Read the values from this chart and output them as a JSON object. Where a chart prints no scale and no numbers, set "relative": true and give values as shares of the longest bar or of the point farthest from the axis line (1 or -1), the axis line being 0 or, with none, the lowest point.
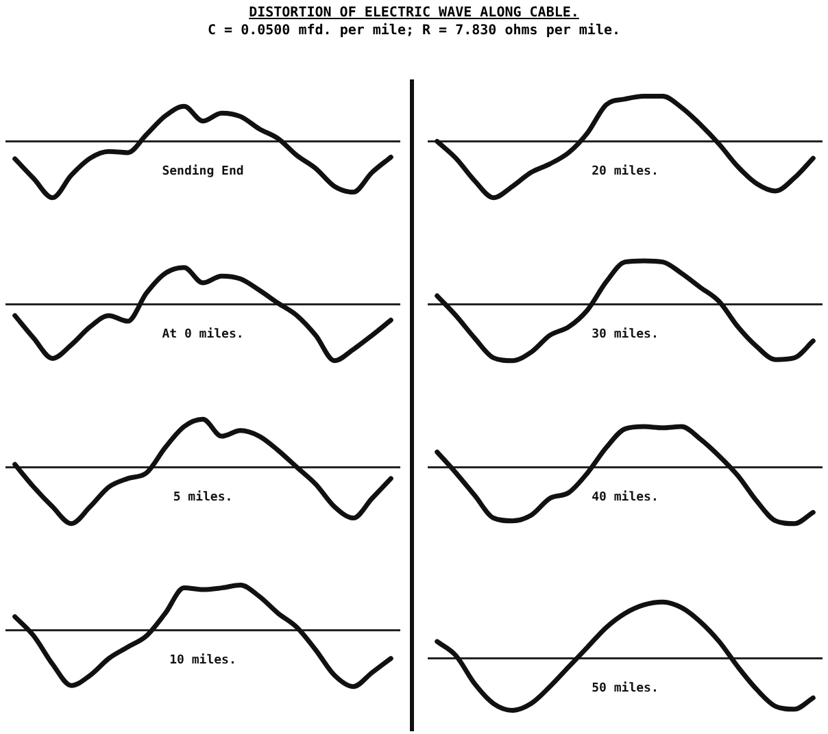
{
  "chart_data": [
    {
      "type": "line",
      "title": "DISTORTION OF ELECTRIC WAVE ALONG CABLE.",
      "subtitle": "C = 0.0500 mfd. per mile; R = 7.830 ohms per mile.",
      "relative": true,
      "marker": "none",
      "line_style": "solid",
      "annotations": [
        "Sending End"
      ],
      "categories": [
        null,
        null,
        null,
        null,
        null,
        null,
        null,
        null,
        null,
        null,
        null,
        null,
        null,
        null,
        null,
        null,
        null,
        null,
        null,
        null,
        null
      ],
      "series": [
        {
          "color": "#111111",
          "values": [
            -0.31,
            -0.66,
            -1.0,
            -0.6,
            -0.3,
            -0.18,
            -0.2,
            0.12,
            0.45,
            0.62,
            0.36,
            0.5,
            0.44,
            0.22,
            0.05,
            -0.25,
            -0.48,
            -0.8,
            -0.9,
            -0.55,
            -0.28
          ]
        }
      ]
    },
    {
      "type": "line",
      "relative": true,
      "marker": "none",
      "line_style": "solid",
      "annotations": [
        "20 miles."
      ],
      "categories": [
        null,
        null,
        null,
        null,
        null,
        null,
        null,
        null,
        null,
        null,
        null,
        null,
        null,
        null,
        null,
        null,
        null,
        null,
        null,
        null,
        null
      ],
      "series": [
        {
          "color": "#111111",
          "values": [
            0,
            -0.3,
            -0.7,
            -1.0,
            -0.8,
            -0.55,
            -0.4,
            -0.2,
            0.15,
            0.65,
            0.75,
            0.8,
            0.8,
            0.6,
            0.3,
            -0.05,
            -0.45,
            -0.75,
            -0.88,
            -0.65,
            -0.3
          ]
        }
      ]
    },
    {
      "type": "line",
      "relative": true,
      "marker": "none",
      "line_style": "solid",
      "annotations": [
        "At 0 miles."
      ],
      "categories": [
        null,
        null,
        null,
        null,
        null,
        null,
        null,
        null,
        null,
        null,
        null,
        null,
        null,
        null,
        null,
        null,
        null,
        null,
        null,
        null,
        null
      ],
      "series": [
        {
          "color": "#111111",
          "values": [
            -0.2,
            -0.6,
            -0.96,
            -0.72,
            -0.4,
            -0.2,
            -0.3,
            0.2,
            0.55,
            0.65,
            0.38,
            0.5,
            0.45,
            0.25,
            0.02,
            -0.2,
            -0.55,
            -1.0,
            -0.8,
            -0.55,
            -0.28
          ]
        }
      ]
    },
    {
      "type": "line",
      "relative": true,
      "marker": "none",
      "line_style": "solid",
      "annotations": [
        "30 miles."
      ],
      "categories": [
        null,
        null,
        null,
        null,
        null,
        null,
        null,
        null,
        null,
        null,
        null,
        null,
        null,
        null,
        null,
        null,
        null,
        null,
        null,
        null,
        null
      ],
      "series": [
        {
          "color": "#111111",
          "values": [
            0.15,
            -0.2,
            -0.6,
            -0.95,
            -1.0,
            -0.85,
            -0.55,
            -0.4,
            -0.1,
            0.4,
            0.75,
            0.77,
            0.75,
            0.55,
            0.3,
            0.05,
            -0.4,
            -0.75,
            -0.98,
            -0.95,
            -0.65
          ]
        }
      ]
    },
    {
      "type": "line",
      "relative": true,
      "marker": "none",
      "line_style": "solid",
      "annotations": [
        "5 miles."
      ],
      "categories": [
        null,
        null,
        null,
        null,
        null,
        null,
        null,
        null,
        null,
        null,
        null,
        null,
        null,
        null,
        null,
        null,
        null,
        null,
        null,
        null,
        null
      ],
      "series": [
        {
          "color": "#111111",
          "values": [
            0.05,
            -0.35,
            -0.7,
            -1.0,
            -0.7,
            -0.35,
            -0.2,
            -0.1,
            0.35,
            0.72,
            0.85,
            0.55,
            0.65,
            0.55,
            0.3,
            0.0,
            -0.3,
            -0.7,
            -0.9,
            -0.55,
            -0.2
          ]
        }
      ]
    },
    {
      "type": "line",
      "relative": true,
      "marker": "none",
      "line_style": "solid",
      "annotations": [
        "40 miles."
      ],
      "categories": [
        null,
        null,
        null,
        null,
        null,
        null,
        null,
        null,
        null,
        null,
        null,
        null,
        null,
        null,
        null,
        null,
        null,
        null,
        null,
        null,
        null
      ],
      "series": [
        {
          "color": "#111111",
          "values": [
            0.27,
            -0.1,
            -0.5,
            -0.9,
            -0.95,
            -0.85,
            -0.55,
            -0.45,
            -0.1,
            0.35,
            0.68,
            0.72,
            0.7,
            0.72,
            0.5,
            0.2,
            -0.15,
            -0.6,
            -0.95,
            -1.0,
            -0.8
          ]
        }
      ]
    },
    {
      "type": "line",
      "relative": true,
      "marker": "none",
      "line_style": "solid",
      "annotations": [
        "10 miles."
      ],
      "categories": [
        null,
        null,
        null,
        null,
        null,
        null,
        null,
        null,
        null,
        null,
        null,
        null,
        null,
        null,
        null,
        null,
        null,
        null,
        null,
        null,
        null
      ],
      "series": [
        {
          "color": "#111111",
          "values": [
            0.24,
            -0.1,
            -0.6,
            -0.98,
            -0.8,
            -0.5,
            -0.3,
            -0.1,
            0.3,
            0.75,
            0.72,
            0.75,
            0.8,
            0.6,
            0.3,
            0.05,
            -0.35,
            -0.8,
            -1.0,
            -0.75,
            -0.5
          ]
        }
      ]
    },
    {
      "type": "line",
      "relative": true,
      "marker": "none",
      "line_style": "solid",
      "annotations": [
        "50 miles."
      ],
      "categories": [
        null,
        null,
        null,
        null,
        null,
        null,
        null,
        null,
        null,
        null,
        null,
        null,
        null,
        null,
        null,
        null,
        null,
        null,
        null,
        null,
        null
      ],
      "series": [
        {
          "color": "#111111",
          "values": [
            0.3,
            0.05,
            -0.45,
            -0.8,
            -0.92,
            -0.8,
            -0.5,
            -0.15,
            0.2,
            0.55,
            0.8,
            0.95,
            1.0,
            0.9,
            0.65,
            0.3,
            -0.15,
            -0.55,
            -0.85,
            -0.9,
            -0.7
          ]
        }
      ]
    }
  ]
}
